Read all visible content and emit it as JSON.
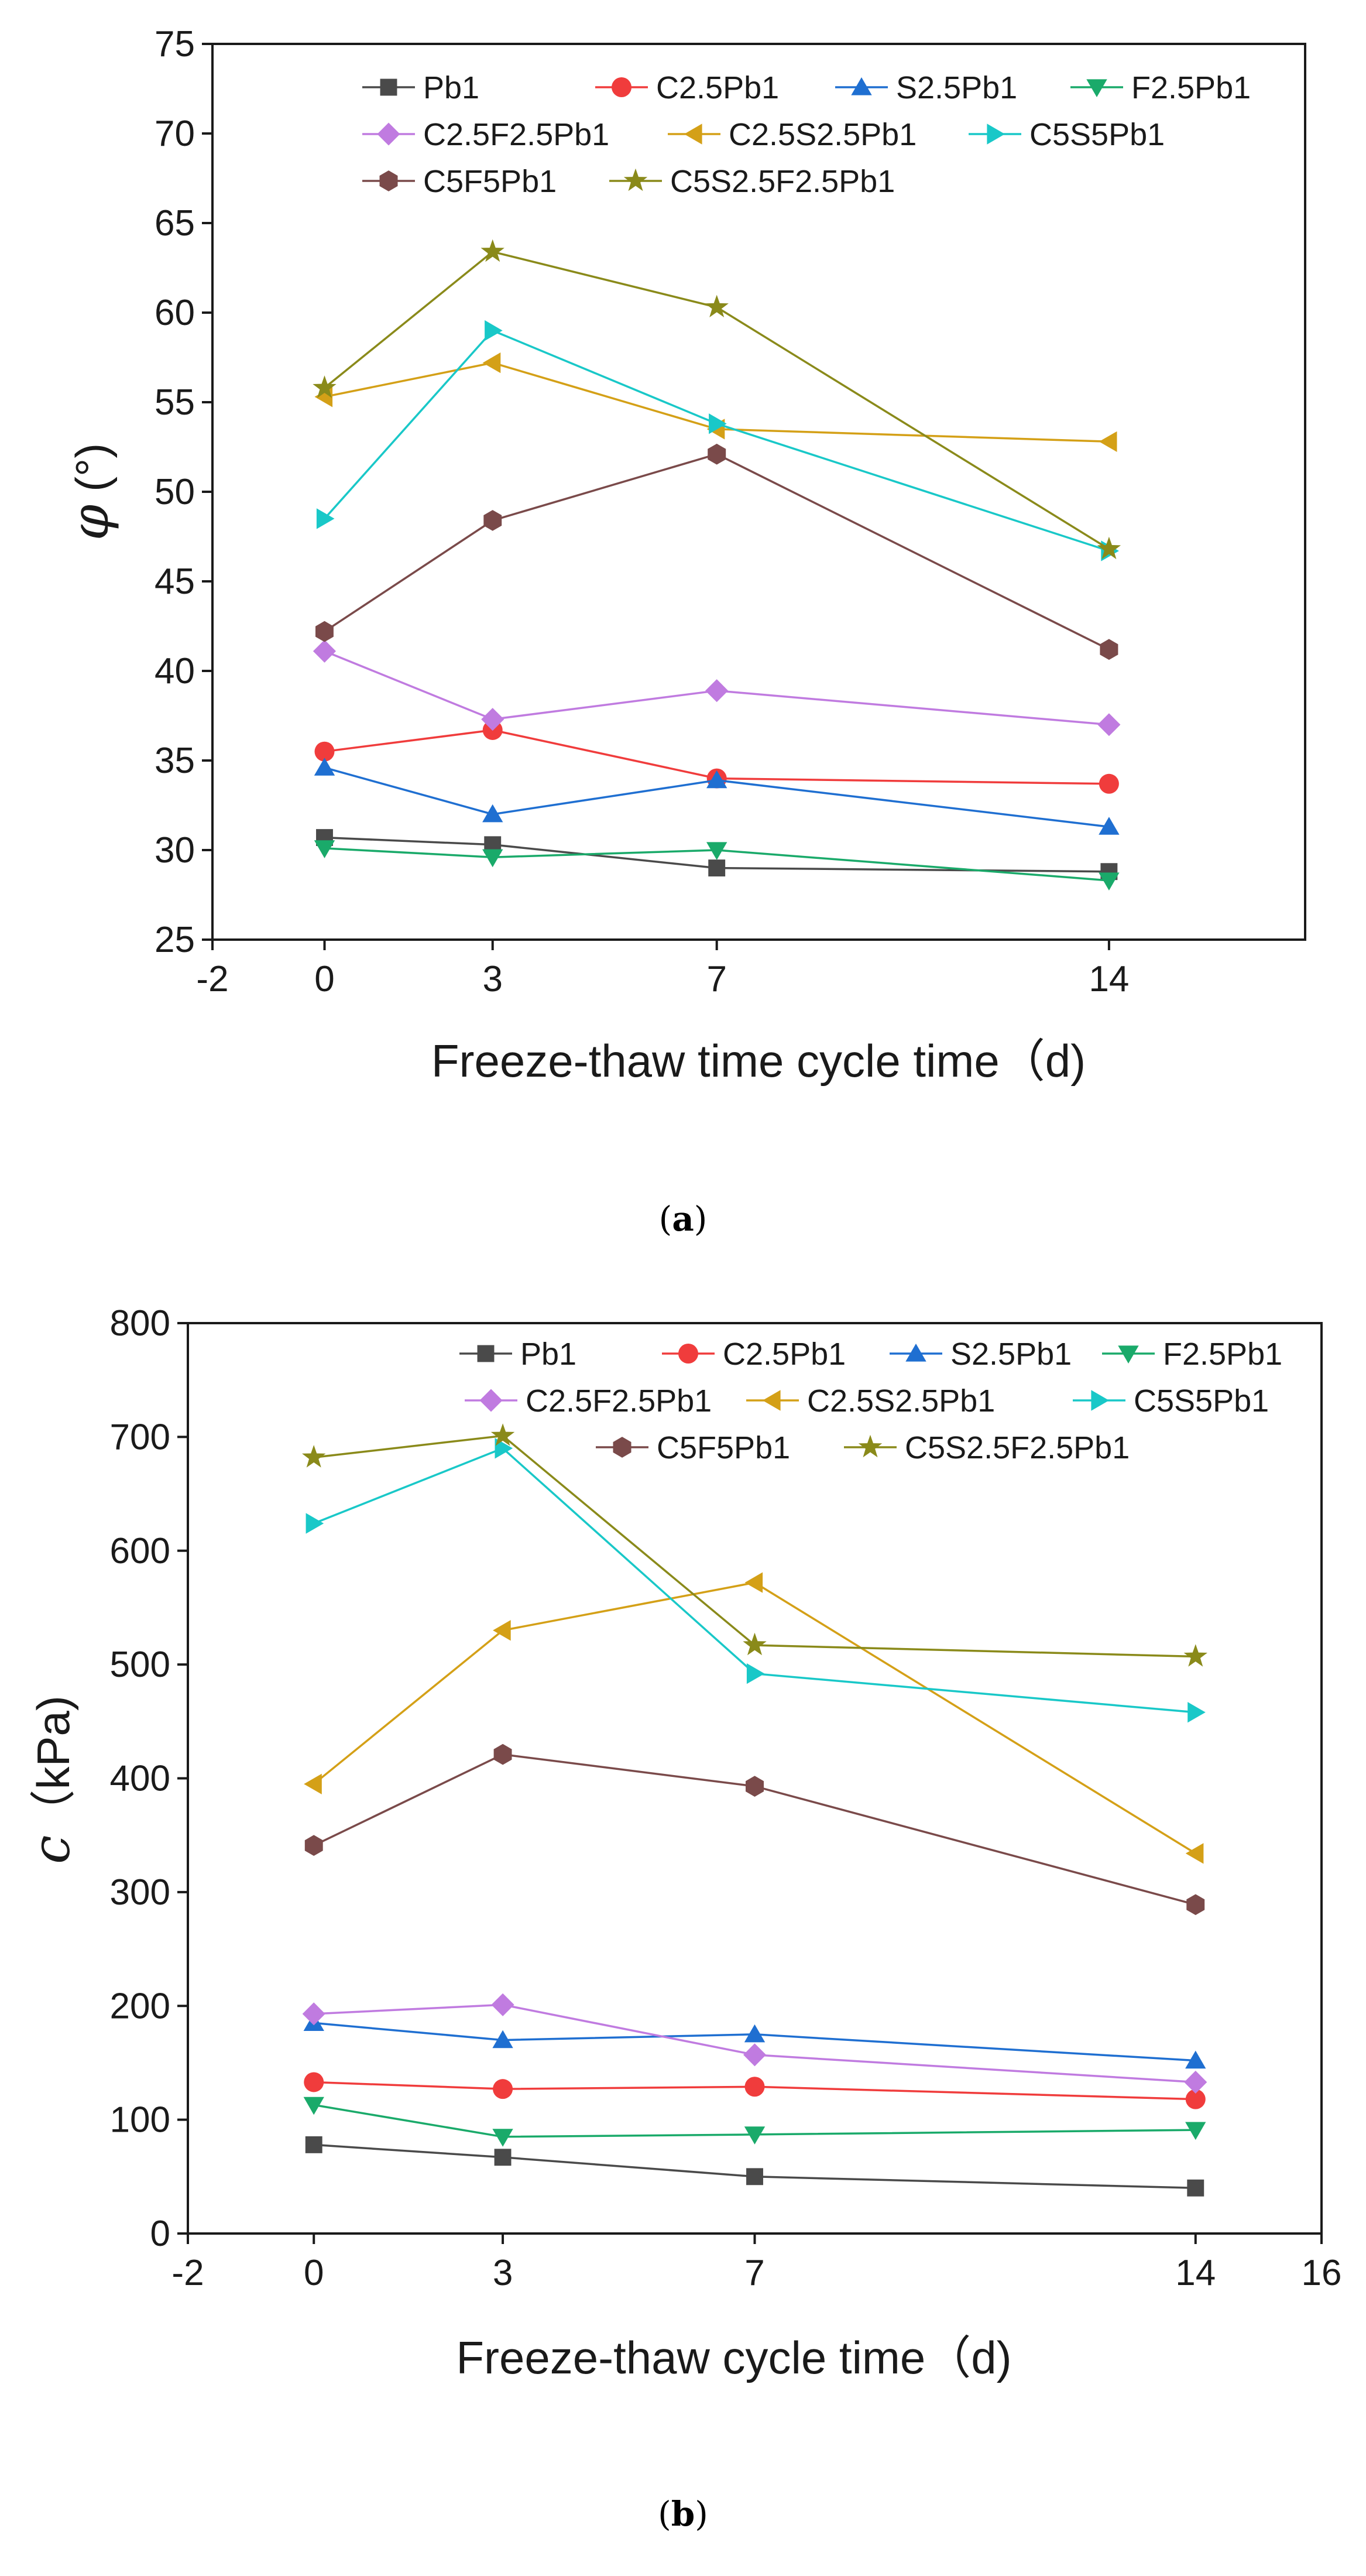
{
  "chart_data": [
    {
      "type": "line",
      "caption_label": "a",
      "x": [
        0,
        3,
        7,
        14
      ],
      "xticks": [
        "-2",
        "0",
        "3",
        "7",
        "14"
      ],
      "xlim": [
        -2,
        17.5
      ],
      "ylim": [
        25,
        75
      ],
      "yticks": [
        "25",
        "30",
        "35",
        "40",
        "45",
        "50",
        "55",
        "60",
        "65",
        "70",
        "75"
      ],
      "xlabel": "Freeze-thaw time cycle time（d)",
      "ylabel_symbol": "φ",
      "ylabel_unit": " (°)",
      "legend_position": "top",
      "series": [
        {
          "name": "Pb1",
          "color": "#4a4a4a",
          "marker": "square",
          "values": [
            30.7,
            30.3,
            29.0,
            28.8
          ]
        },
        {
          "name": "C2.5Pb1",
          "color": "#f03c3c",
          "marker": "circle",
          "values": [
            35.5,
            36.7,
            34.0,
            33.7
          ]
        },
        {
          "name": "S2.5Pb1",
          "color": "#1f6fd1",
          "marker": "triangle-up",
          "values": [
            34.6,
            32.0,
            33.9,
            31.3
          ]
        },
        {
          "name": "F2.5Pb1",
          "color": "#1aaa6a",
          "marker": "triangle-down",
          "values": [
            30.1,
            29.6,
            30.0,
            28.3
          ]
        },
        {
          "name": "C2.5F2.5Pb1",
          "color": "#c07be0",
          "marker": "diamond",
          "values": [
            41.1,
            37.3,
            38.9,
            37.0
          ]
        },
        {
          "name": "C2.5S2.5Pb1",
          "color": "#d4a017",
          "marker": "triangle-left",
          "values": [
            55.3,
            57.2,
            53.5,
            52.8
          ]
        },
        {
          "name": "C5S5Pb1",
          "color": "#19c8c8",
          "marker": "triangle-right",
          "values": [
            48.5,
            59.0,
            53.8,
            46.7
          ]
        },
        {
          "name": "C5F5Pb1",
          "color": "#7a4a4a",
          "marker": "hexagon",
          "values": [
            42.2,
            48.4,
            52.1,
            41.2
          ]
        },
        {
          "name": "C5S2.5F2.5Pb1",
          "color": "#8a8a1a",
          "marker": "star",
          "values": [
            55.8,
            63.4,
            60.3,
            46.8
          ]
        }
      ]
    },
    {
      "type": "line",
      "caption_label": "b",
      "x": [
        0,
        3,
        7,
        14
      ],
      "xticks": [
        "-2",
        "0",
        "3",
        "7",
        "14",
        "16"
      ],
      "xlim": [
        -2,
        16
      ],
      "ylim": [
        0,
        800
      ],
      "yticks": [
        "0",
        "100",
        "200",
        "300",
        "400",
        "500",
        "600",
        "700",
        "800"
      ],
      "xlabel": "Freeze-thaw cycle time（d)",
      "ylabel_symbol": "c",
      "ylabel_unit": "（kPa)",
      "legend_position": "top-right",
      "series": [
        {
          "name": "Pb1",
          "color": "#4a4a4a",
          "marker": "square",
          "values": [
            78,
            67,
            50,
            40
          ]
        },
        {
          "name": "C2.5Pb1",
          "color": "#f03c3c",
          "marker": "circle",
          "values": [
            133,
            127,
            129,
            118
          ]
        },
        {
          "name": "S2.5Pb1",
          "color": "#1f6fd1",
          "marker": "triangle-up",
          "values": [
            185,
            170,
            175,
            152
          ]
        },
        {
          "name": "F2.5Pb1",
          "color": "#1aaa6a",
          "marker": "triangle-down",
          "values": [
            113,
            85,
            87,
            91
          ]
        },
        {
          "name": "C2.5F2.5Pb1",
          "color": "#c07be0",
          "marker": "diamond",
          "values": [
            193,
            201,
            157,
            133
          ]
        },
        {
          "name": "C2.5S2.5Pb1",
          "color": "#d4a017",
          "marker": "triangle-left",
          "values": [
            395,
            530,
            572,
            334
          ]
        },
        {
          "name": "C5S5Pb1",
          "color": "#19c8c8",
          "marker": "triangle-right",
          "values": [
            624,
            690,
            492,
            458
          ]
        },
        {
          "name": "C5F5Pb1",
          "color": "#7a4a4a",
          "marker": "hexagon",
          "values": [
            341,
            421,
            393,
            289
          ]
        },
        {
          "name": "C5S2.5F2.5Pb1",
          "color": "#8a8a1a",
          "marker": "star",
          "values": [
            682,
            701,
            517,
            507
          ]
        }
      ]
    }
  ]
}
